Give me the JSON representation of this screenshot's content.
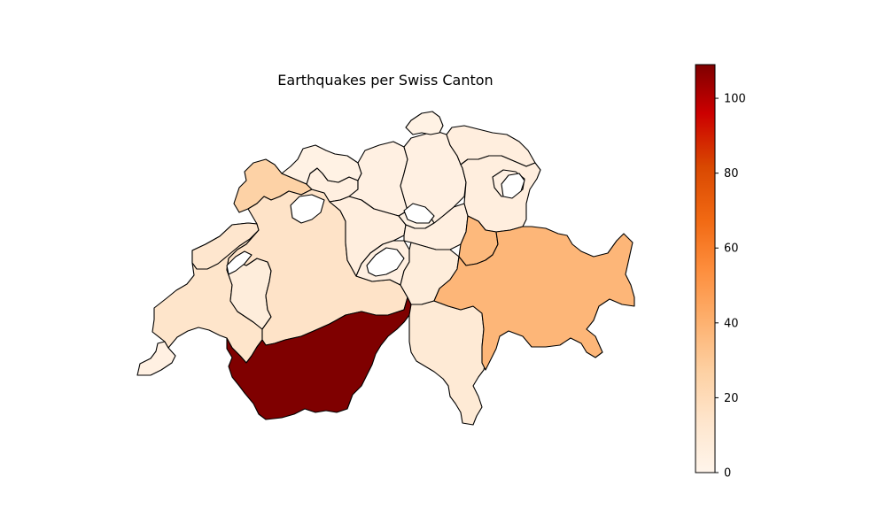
{
  "map": {
    "title": "Earthquakes per Swiss Canton",
    "colormap": "OrRd",
    "stroke_color": "#000000",
    "regions": [
      {
        "id": "geneva",
        "value": 4
      },
      {
        "id": "vaud",
        "value": 14
      },
      {
        "id": "fribourg",
        "value": 7
      },
      {
        "id": "neuchatel",
        "value": 13
      },
      {
        "id": "jura",
        "value": 26
      },
      {
        "id": "bern",
        "value": 15
      },
      {
        "id": "valais",
        "value": 109
      },
      {
        "id": "solothurn",
        "value": 5
      },
      {
        "id": "basel",
        "value": 3
      },
      {
        "id": "aargau",
        "value": 4
      },
      {
        "id": "lucerne",
        "value": 6
      },
      {
        "id": "obwalden-nidwalden",
        "value": 5
      },
      {
        "id": "zug",
        "value": 3
      },
      {
        "id": "schwyz",
        "value": 5
      },
      {
        "id": "uri",
        "value": 7
      },
      {
        "id": "ticino",
        "value": 10
      },
      {
        "id": "zurich",
        "value": 4
      },
      {
        "id": "schaffhausen",
        "value": 3
      },
      {
        "id": "thurgau",
        "value": 6
      },
      {
        "id": "st-gallen",
        "value": 6
      },
      {
        "id": "appenzell",
        "value": 4
      },
      {
        "id": "glarus",
        "value": 37
      },
      {
        "id": "graubunden",
        "value": 38
      }
    ]
  },
  "colorbar": {
    "min": 0,
    "max": 109,
    "ticks": [
      0,
      20,
      40,
      60,
      80,
      100
    ],
    "tick_labels": [
      "0",
      "20",
      "40",
      "60",
      "80",
      "100"
    ]
  }
}
